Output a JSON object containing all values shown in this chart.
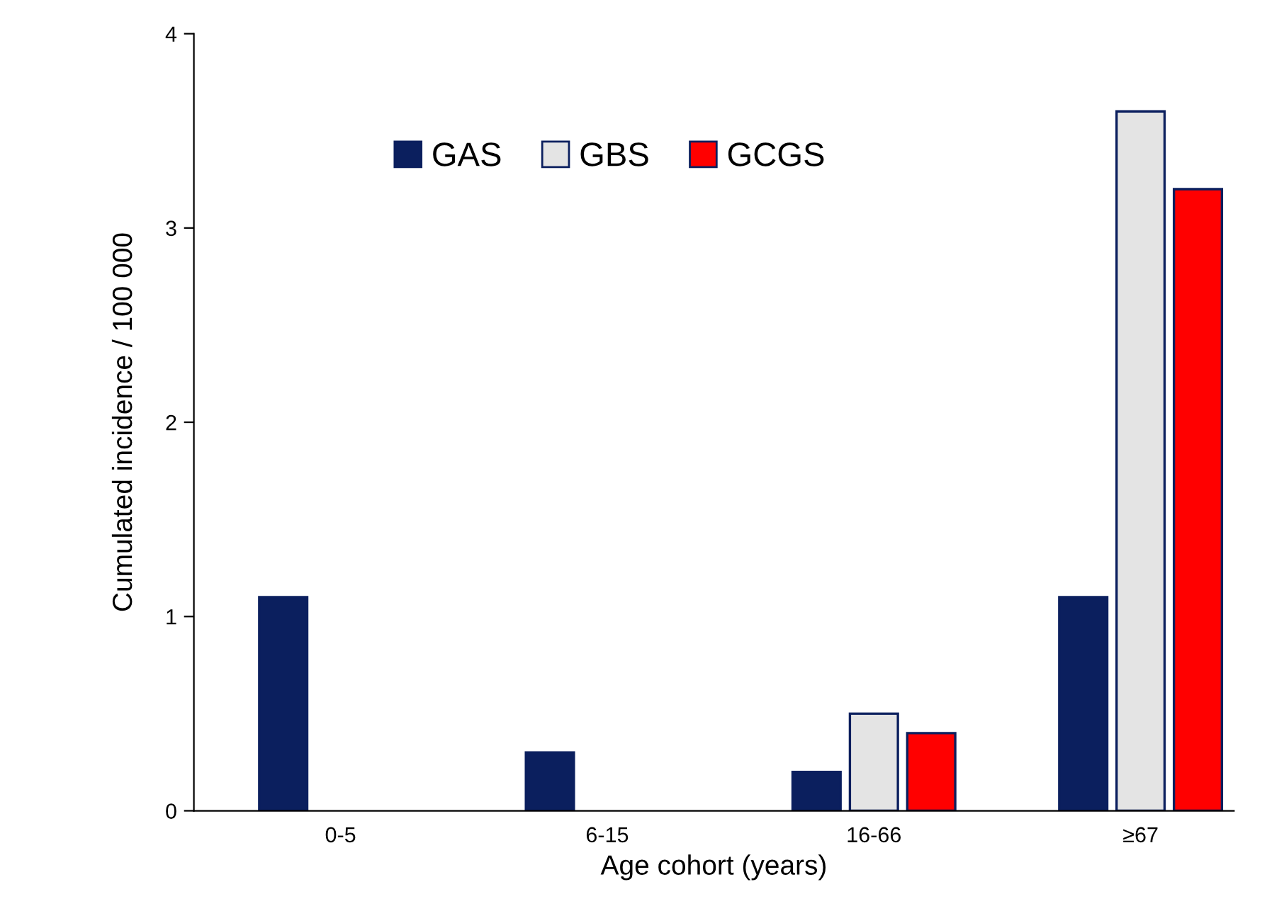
{
  "chart_data": {
    "type": "bar",
    "xlabel": "Age cohort (years)",
    "ylabel": "Cumulated incidence / 100 000",
    "categories": [
      "0-5",
      "6-15",
      "16-66",
      "≥67"
    ],
    "series": [
      {
        "name": "GAS",
        "color": "#0b1f5e",
        "values": [
          1.1,
          0.3,
          0.2,
          1.1
        ]
      },
      {
        "name": "GBS",
        "color": "#e4e4e4",
        "values": [
          null,
          null,
          0.5,
          3.6
        ]
      },
      {
        "name": "GCGS",
        "color": "#ff0000",
        "values": [
          null,
          null,
          0.4,
          3.2
        ]
      }
    ],
    "ylim": [
      0,
      4
    ],
    "yticks": [
      0,
      1,
      2,
      3,
      4
    ],
    "grid": false,
    "legend": "top"
  }
}
